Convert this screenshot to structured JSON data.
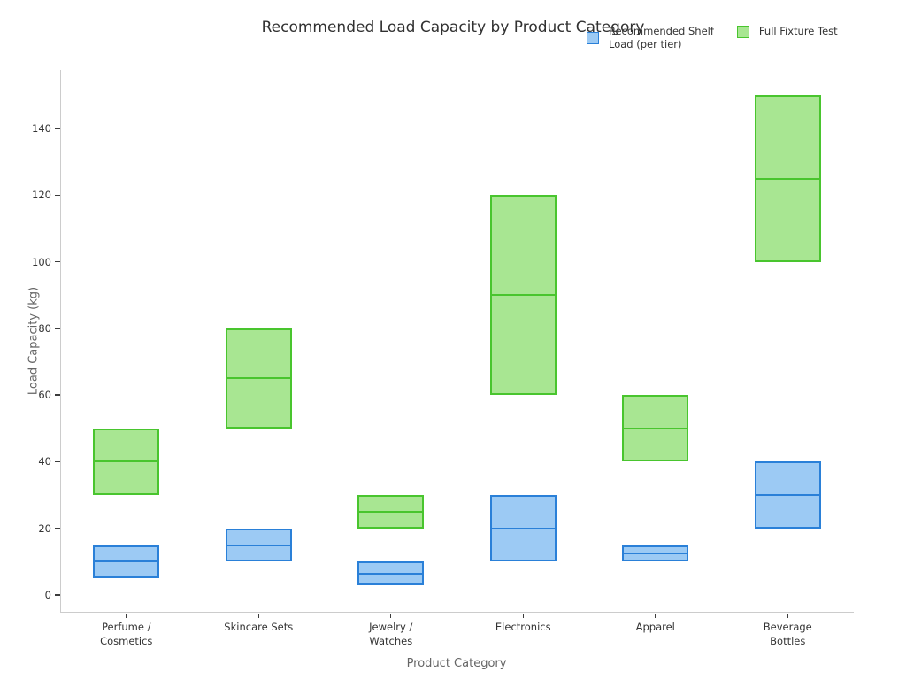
{
  "title": "Recommended Load Capacity by Product Category",
  "xlabel": "Product Category",
  "ylabel": "Load Capacity (kg)",
  "legend": {
    "entries": [
      {
        "label": "Recommended Shelf\nLoad (per tier)",
        "fill": "#9ccaf4",
        "edge": "#2a80d8"
      },
      {
        "label": "Full Fixture Test",
        "fill": "#a8e692",
        "edge": "#49c52e"
      }
    ]
  },
  "chart_data": {
    "type": "bar",
    "variant": "floating-range-boxes-with-midline",
    "title": "Recommended Load Capacity by Product Category",
    "xlabel": "Product Category",
    "ylabel": "Load Capacity (kg)",
    "categories": [
      "Perfume /\nCosmetics",
      "Skincare Sets",
      "Jewelry /\nWatches",
      "Electronics",
      "Apparel",
      "Beverage\nBottles"
    ],
    "yticks": [
      0,
      20,
      40,
      60,
      80,
      100,
      120,
      140
    ],
    "ylim": [
      -5,
      158
    ],
    "grid": false,
    "legend_position": "top-right, two columns, no frame, overlapping title",
    "series": [
      {
        "name": "Recommended Shelf Load (per tier)",
        "fill": "#9ccaf4",
        "edge": "#2a80d8",
        "ranges": [
          {
            "low": 5,
            "mid": 10,
            "high": 15
          },
          {
            "low": 10,
            "mid": 15,
            "high": 20
          },
          {
            "low": 3,
            "mid": 6.5,
            "high": 10
          },
          {
            "low": 10,
            "mid": 20,
            "high": 30
          },
          {
            "low": 10,
            "mid": 12.5,
            "high": 15
          },
          {
            "low": 20,
            "mid": 30,
            "high": 40
          }
        ]
      },
      {
        "name": "Full Fixture Test",
        "fill": "#a8e692",
        "edge": "#49c52e",
        "ranges": [
          {
            "low": 30,
            "mid": 40,
            "high": 50
          },
          {
            "low": 50,
            "mid": 65,
            "high": 80
          },
          {
            "low": 20,
            "mid": 25,
            "high": 30
          },
          {
            "low": 60,
            "mid": 90,
            "high": 120
          },
          {
            "low": 40,
            "mid": 50,
            "high": 60
          },
          {
            "low": 100,
            "mid": 125,
            "high": 150
          }
        ]
      }
    ]
  }
}
